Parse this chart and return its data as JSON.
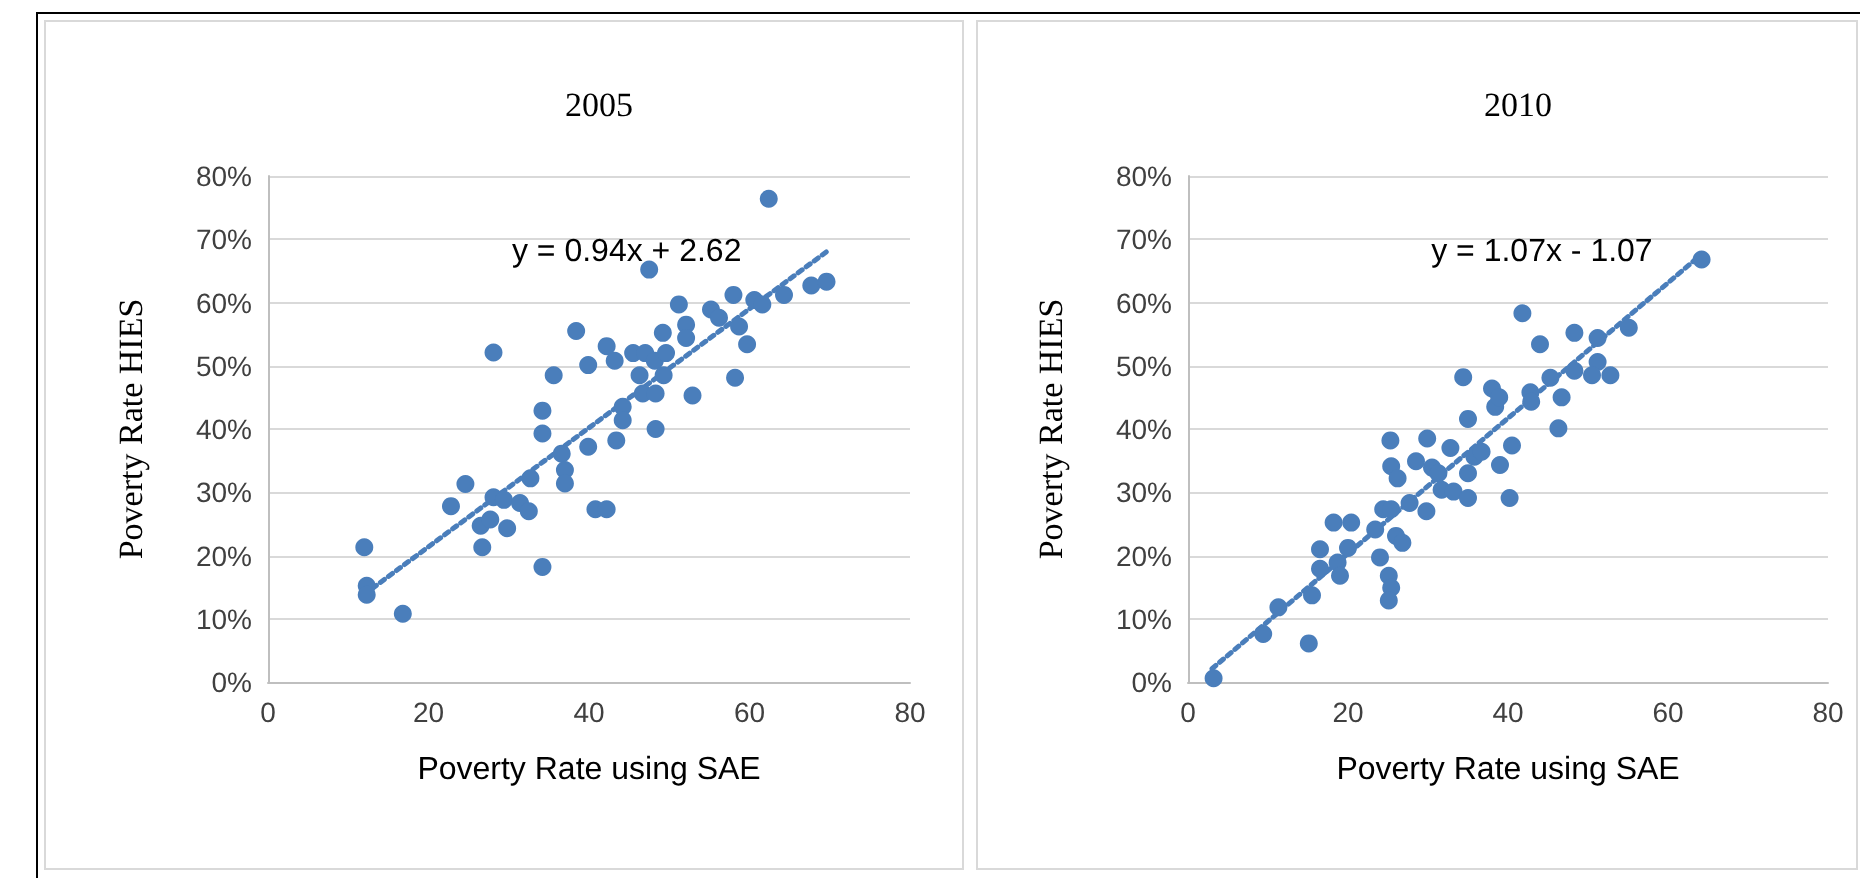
{
  "chart_data": [
    {
      "type": "scatter",
      "title": "2005",
      "xlabel": "Poverty Rate using SAE",
      "ylabel": "Poverty Rate HIES",
      "grid": "y",
      "xlim": [
        0,
        80
      ],
      "xticks": [
        0,
        20,
        40,
        60,
        80
      ],
      "ylim": [
        0,
        80
      ],
      "yticks": [
        {
          "value": 0,
          "label": "0%"
        },
        {
          "value": 10,
          "label": "10%"
        },
        {
          "value": 20,
          "label": "20%"
        },
        {
          "value": 30,
          "label": "30%"
        },
        {
          "value": 40,
          "label": "40%"
        },
        {
          "value": 50,
          "label": "50%"
        },
        {
          "value": 60,
          "label": "60%"
        },
        {
          "value": 70,
          "label": "70%"
        },
        {
          "value": 80,
          "label": "80%"
        }
      ],
      "annotations": [
        "y = 0.94x + 2.62"
      ],
      "series": [
        {
          "color": "#4a7ebb",
          "marker": "circle",
          "x": [
            12.0,
            12.3,
            12.3,
            16.8,
            22.8,
            24.6,
            26.5,
            26.7,
            27.7,
            28.1,
            28.1,
            29.4,
            29.8,
            31.4,
            32.5,
            32.7,
            34.2,
            34.2,
            34.2,
            35.6,
            36.6,
            37.0,
            37.0,
            38.4,
            39.9,
            39.9,
            40.8,
            42.2,
            42.2,
            43.2,
            43.4,
            44.2,
            44.2,
            45.5,
            46.3,
            46.7,
            47.0,
            47.5,
            48.2,
            48.3,
            48.3,
            49.2,
            49.3,
            49.6,
            51.2,
            52.1,
            52.1,
            52.9,
            55.2,
            56.2,
            58.0,
            58.2,
            58.7,
            59.7,
            60.6,
            61.6,
            62.4,
            64.3,
            67.7,
            69.6
          ],
          "values": [
            21.3,
            15.2,
            13.8,
            10.8,
            27.8,
            31.3,
            24.7,
            21.3,
            25.7,
            52.1,
            29.2,
            28.8,
            24.3,
            28.3,
            27.0,
            32.2,
            18.2,
            39.3,
            42.9,
            48.5,
            36.1,
            33.5,
            31.4,
            55.5,
            37.2,
            50.1,
            27.3,
            27.3,
            53.1,
            50.8,
            38.2,
            43.5,
            41.4,
            52.0,
            48.5,
            45.6,
            52.0,
            65.2,
            50.8,
            45.6,
            40.0,
            55.2,
            48.5,
            52.0,
            59.7,
            56.5,
            54.4,
            45.3,
            58.9,
            57.6,
            61.2,
            48.1,
            56.2,
            53.4,
            60.4,
            59.7,
            76.4,
            61.2,
            62.7,
            63.3
          ]
        },
        {
          "type": "line",
          "color": "#4a7ebb",
          "line_style": "dotted",
          "marker": "none",
          "x": [
            13,
            70
          ],
          "values": [
            14.8,
            68.4
          ]
        }
      ]
    },
    {
      "type": "scatter",
      "title": "2010",
      "xlabel": "Poverty Rate using SAE",
      "ylabel": "Poverty Rate HIES",
      "grid": "y",
      "xlim": [
        0,
        80
      ],
      "xticks": [
        0,
        20,
        40,
        60,
        80
      ],
      "ylim": [
        0,
        80
      ],
      "yticks": [
        {
          "value": 0,
          "label": "0%"
        },
        {
          "value": 10,
          "label": "10%"
        },
        {
          "value": 20,
          "label": "20%"
        },
        {
          "value": 30,
          "label": "30%"
        },
        {
          "value": 40,
          "label": "40%"
        },
        {
          "value": 50,
          "label": "50%"
        },
        {
          "value": 60,
          "label": "60%"
        },
        {
          "value": 70,
          "label": "70%"
        },
        {
          "value": 80,
          "label": "80%"
        }
      ],
      "annotations": [
        "y = 1.07x - 1.07"
      ],
      "series": [
        {
          "color": "#4a7ebb",
          "marker": "circle",
          "x": [
            3.2,
            9.4,
            11.3,
            15.1,
            15.5,
            16.5,
            16.5,
            18.2,
            18.7,
            19.0,
            20.0,
            20.4,
            23.4,
            24.0,
            24.4,
            25.1,
            25.3,
            25.4,
            25.4,
            25.1,
            25.4,
            26.0,
            26.2,
            26.8,
            27.7,
            28.5,
            29.8,
            29.9,
            30.5,
            31.3,
            31.7,
            32.8,
            33.2,
            35.0,
            35.0,
            34.4,
            35.0,
            35.8,
            36.7,
            38.0,
            38.4,
            38.9,
            39.0,
            40.2,
            40.5,
            41.8,
            42.8,
            42.9,
            44.0,
            45.3,
            46.3,
            46.7,
            48.3,
            48.3,
            51.2,
            51.2,
            50.5,
            52.8,
            55.1,
            64.2
          ],
          "values": [
            0.6,
            7.6,
            11.8,
            6.1,
            13.7,
            21.0,
            17.9,
            25.2,
            18.9,
            16.8,
            21.2,
            25.2,
            24.1,
            19.7,
            27.3,
            16.8,
            38.2,
            34.1,
            14.9,
            12.9,
            27.3,
            23.1,
            32.2,
            22.0,
            28.3,
            34.9,
            27.0,
            38.5,
            33.9,
            33.0,
            30.4,
            37.0,
            30.1,
            29.1,
            33.0,
            48.2,
            41.6,
            35.6,
            36.4,
            46.4,
            43.5,
            45.0,
            34.3,
            29.1,
            37.4,
            58.3,
            45.8,
            44.3,
            53.4,
            48.1,
            40.1,
            45.0,
            55.2,
            49.2,
            54.4,
            50.6,
            48.5,
            48.5,
            56.0,
            66.8
          ]
        },
        {
          "type": "line",
          "color": "#4a7ebb",
          "line_style": "dotted",
          "marker": "none",
          "x": [
            3,
            64
          ],
          "values": [
            2.1,
            67.4
          ]
        }
      ]
    }
  ]
}
